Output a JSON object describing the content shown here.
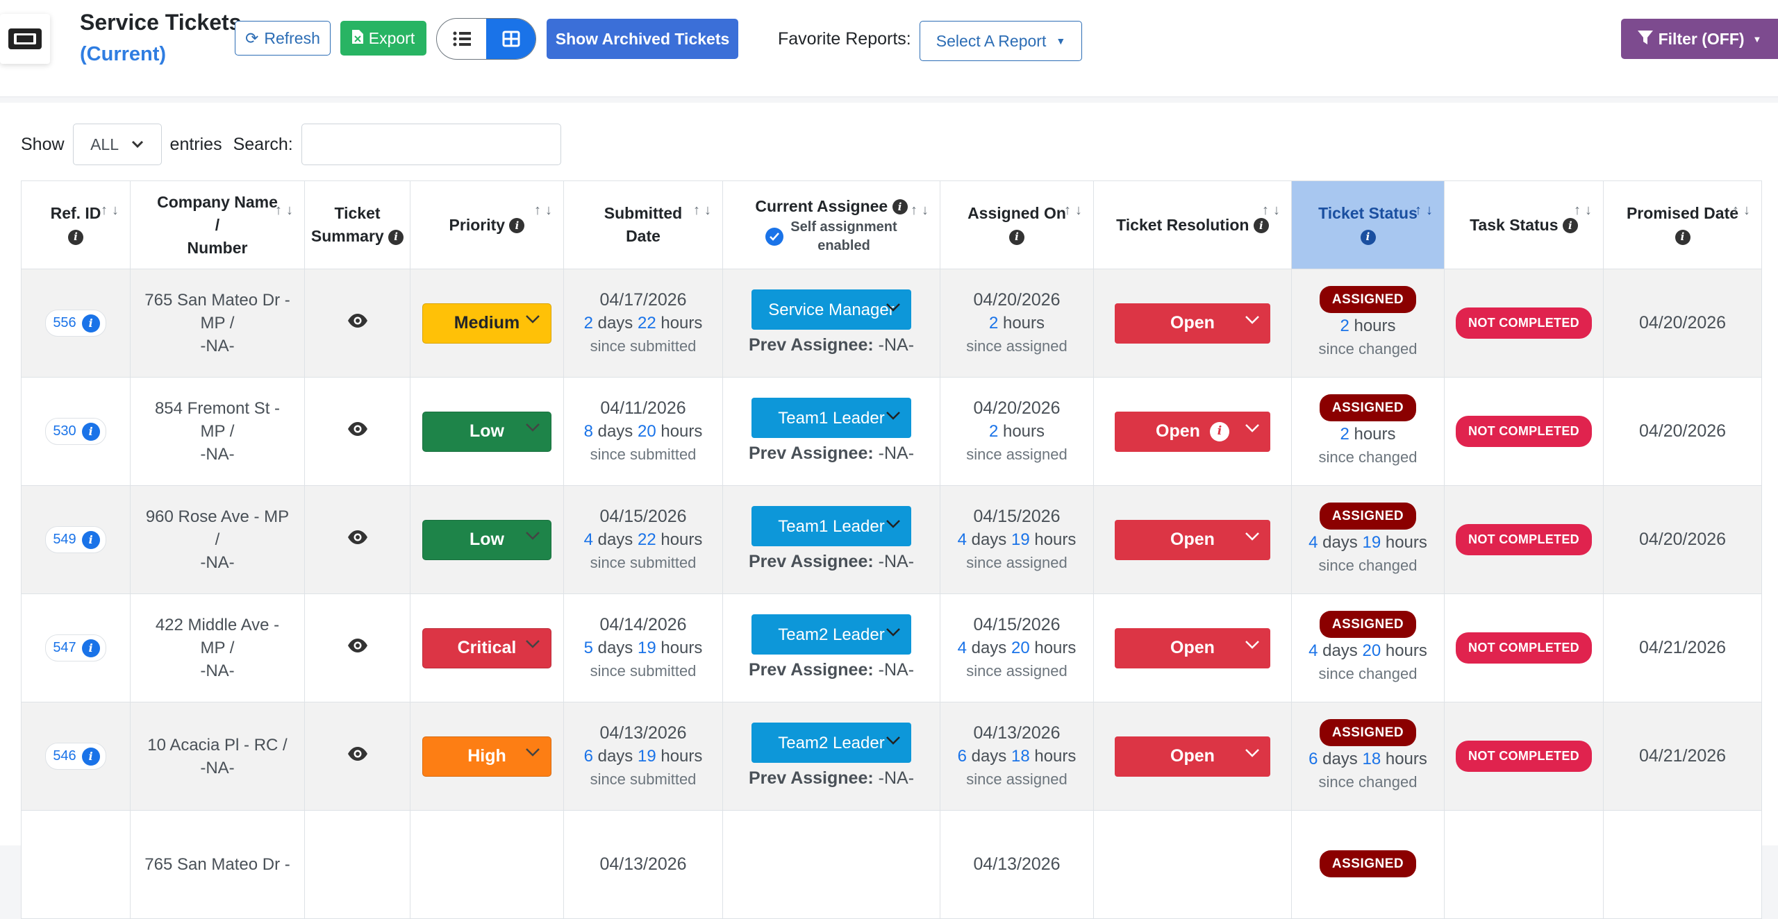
{
  "header": {
    "title_line1": "Service Tickets",
    "title_line2": "(Current)",
    "refresh_label": "Refresh",
    "export_label": "Export",
    "archived_label": "Show Archived Tickets",
    "favorite_reports_label": "Favorite Reports:",
    "select_report_label": "Select A Report",
    "filter_label": "Filter (OFF)"
  },
  "controls": {
    "show_label": "Show",
    "entries_value": "ALL",
    "entries_label": "entries",
    "search_label": "Search:",
    "search_value": ""
  },
  "columns": {
    "ref_id": "Ref. ID",
    "company_line1": "Company Name",
    "company_line2": "/",
    "company_line3": "Number",
    "summary_line1": "Ticket",
    "summary_line2": "Summary",
    "priority": "Priority",
    "submitted_line1": "Submitted",
    "submitted_line2": "Date",
    "assignee": "Current Assignee",
    "self_assign_line1": "Self assignment",
    "self_assign_line2": "enabled",
    "assigned_on": "Assigned On",
    "resolution": "Ticket Resolution",
    "status": "Ticket Status",
    "task_status": "Task Status",
    "promised": "Promised Date",
    "sort_arrows": "↑↓"
  },
  "labels": {
    "days": "days",
    "hours": "hours",
    "since_submitted": "since submitted",
    "since_assigned": "since assigned",
    "since_changed": "since changed",
    "prev_assignee": "Prev Assignee:"
  },
  "colors": {
    "medium": "#ffc107",
    "low": "#1e8449",
    "critical": "#dc3545",
    "high": "#fd7e14"
  },
  "rows": [
    {
      "ref": "556",
      "company1": "765 San Mateo Dr -",
      "company2": "MP /",
      "company3": "-NA-",
      "priority": "Medium",
      "priority_color": "#ffc107",
      "priority_text": "#212529",
      "submitted_date": "04/17/2026",
      "sub_days": "2",
      "sub_hours": "22",
      "assignee": "Service Manager",
      "prev": "-NA-",
      "assigned_date": "04/20/2026",
      "asg_days": "",
      "asg_hours": "2",
      "resolution": "Open",
      "resolution_info": false,
      "status": "ASSIGNED",
      "st_days": "",
      "st_hours": "2",
      "task": "NOT COMPLETED",
      "promised": "04/20/2026"
    },
    {
      "ref": "530",
      "company1": "854 Fremont St -",
      "company2": "MP /",
      "company3": "-NA-",
      "priority": "Low",
      "priority_color": "#1e8449",
      "priority_text": "#ffffff",
      "submitted_date": "04/11/2026",
      "sub_days": "8",
      "sub_hours": "20",
      "assignee": "Team1 Leader",
      "prev": "-NA-",
      "assigned_date": "04/20/2026",
      "asg_days": "",
      "asg_hours": "2",
      "resolution": "Open",
      "resolution_info": true,
      "status": "ASSIGNED",
      "st_days": "",
      "st_hours": "2",
      "task": "NOT COMPLETED",
      "promised": "04/20/2026"
    },
    {
      "ref": "549",
      "company1": "960 Rose Ave - MP",
      "company2": "/",
      "company3": "-NA-",
      "priority": "Low",
      "priority_color": "#1e8449",
      "priority_text": "#ffffff",
      "submitted_date": "04/15/2026",
      "sub_days": "4",
      "sub_hours": "22",
      "assignee": "Team1 Leader",
      "prev": "-NA-",
      "assigned_date": "04/15/2026",
      "asg_days": "4",
      "asg_hours": "19",
      "resolution": "Open",
      "resolution_info": false,
      "status": "ASSIGNED",
      "st_days": "4",
      "st_hours": "19",
      "task": "NOT COMPLETED",
      "promised": "04/20/2026"
    },
    {
      "ref": "547",
      "company1": "422 Middle Ave -",
      "company2": "MP /",
      "company3": "-NA-",
      "priority": "Critical",
      "priority_color": "#dc3545",
      "priority_text": "#ffffff",
      "submitted_date": "04/14/2026",
      "sub_days": "5",
      "sub_hours": "19",
      "assignee": "Team2 Leader",
      "prev": "-NA-",
      "assigned_date": "04/15/2026",
      "asg_days": "4",
      "asg_hours": "20",
      "resolution": "Open",
      "resolution_info": false,
      "status": "ASSIGNED",
      "st_days": "4",
      "st_hours": "20",
      "task": "NOT COMPLETED",
      "promised": "04/21/2026"
    },
    {
      "ref": "546",
      "company1": "10 Acacia Pl - RC /",
      "company2": "",
      "company3": "-NA-",
      "priority": "High",
      "priority_color": "#fd7e14",
      "priority_text": "#ffffff",
      "submitted_date": "04/13/2026",
      "sub_days": "6",
      "sub_hours": "19",
      "assignee": "Team2 Leader",
      "prev": "-NA-",
      "assigned_date": "04/13/2026",
      "asg_days": "6",
      "asg_hours": "18",
      "resolution": "Open",
      "resolution_info": false,
      "status": "ASSIGNED",
      "st_days": "6",
      "st_hours": "18",
      "task": "NOT COMPLETED",
      "promised": "04/21/2026"
    },
    {
      "ref": "",
      "company1": "765 San Mateo Dr -",
      "company2": "",
      "company3": "",
      "priority": "",
      "priority_color": "#ffc107",
      "priority_text": "#212529",
      "submitted_date": "04/13/2026",
      "sub_days": "",
      "sub_hours": "",
      "assignee": "",
      "prev": "",
      "assigned_date": "04/13/2026",
      "asg_days": "",
      "asg_hours": "",
      "resolution": "",
      "resolution_info": false,
      "status": "ASSIGNED",
      "st_days": "",
      "st_hours": "",
      "task": "",
      "promised": ""
    }
  ]
}
